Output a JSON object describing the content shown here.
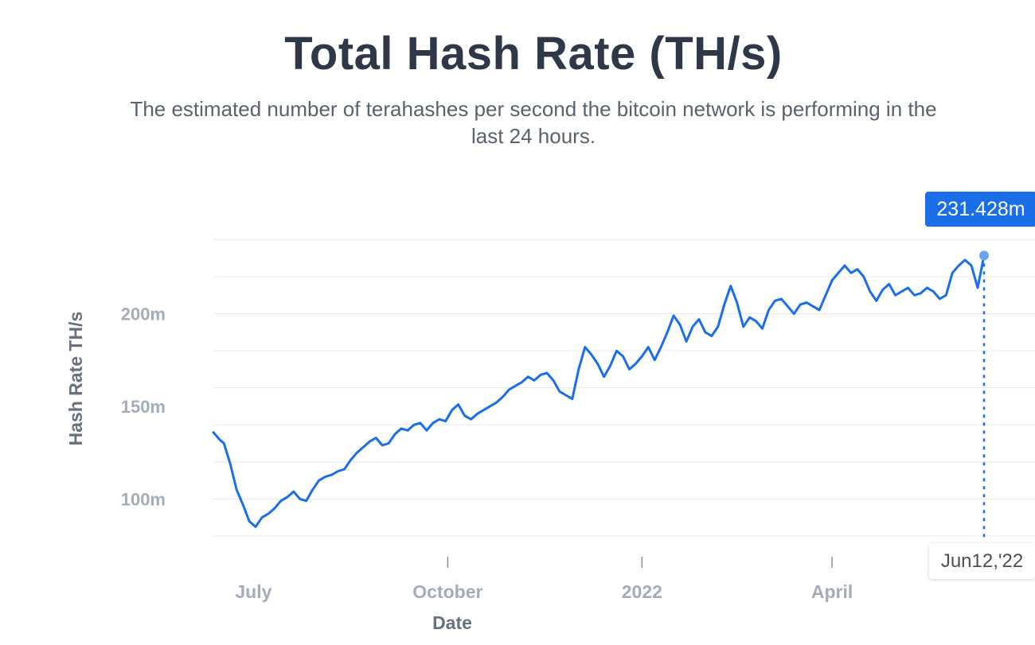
{
  "header": {
    "title": "Total Hash Rate (TH/s)",
    "subtitle": "The estimated number of terahashes per second the bitcoin network is performing in the last 24 hours."
  },
  "colors": {
    "line": "#1a6ee8",
    "grid": "#e6e8eb",
    "tick": "#a3acb9",
    "title": "#2f3848"
  },
  "tooltip": {
    "value": "231.428m",
    "date": "Jun12,'22"
  },
  "chart_data": {
    "type": "line",
    "title": "Total Hash Rate (TH/s)",
    "xlabel": "Date",
    "ylabel": "Hash Rate TH/s",
    "ylim": [
      80,
      250
    ],
    "y_ticks": [
      100,
      150,
      200
    ],
    "y_tick_labels": [
      "100m",
      "150m",
      "200m"
    ],
    "x_ticks": [
      "2021-07-01",
      "2021-10-01",
      "2022-01-01",
      "2022-04-01"
    ],
    "x_tick_labels": [
      "July",
      "October",
      "2022",
      "April"
    ],
    "grid": true,
    "legend": "none",
    "highlight": {
      "x": "2022-06-12",
      "y": 231.428
    },
    "series": [
      {
        "values": [
          [
            "2021-06-12",
            136
          ],
          [
            "2021-06-15",
            132
          ],
          [
            "2021-06-17",
            130
          ],
          [
            "2021-06-20",
            119
          ],
          [
            "2021-06-23",
            105
          ],
          [
            "2021-06-26",
            97
          ],
          [
            "2021-06-29",
            88
          ],
          [
            "2021-07-02",
            85
          ],
          [
            "2021-07-05",
            90
          ],
          [
            "2021-07-08",
            92
          ],
          [
            "2021-07-11",
            95
          ],
          [
            "2021-07-14",
            99
          ],
          [
            "2021-07-17",
            101
          ],
          [
            "2021-07-20",
            104
          ],
          [
            "2021-07-23",
            100
          ],
          [
            "2021-07-26",
            99
          ],
          [
            "2021-07-29",
            105
          ],
          [
            "2021-08-01",
            110
          ],
          [
            "2021-08-04",
            112
          ],
          [
            "2021-08-07",
            113
          ],
          [
            "2021-08-10",
            115
          ],
          [
            "2021-08-13",
            116
          ],
          [
            "2021-08-16",
            121
          ],
          [
            "2021-08-19",
            125
          ],
          [
            "2021-08-22",
            128
          ],
          [
            "2021-08-25",
            131
          ],
          [
            "2021-08-28",
            133
          ],
          [
            "2021-08-31",
            129
          ],
          [
            "2021-09-03",
            130
          ],
          [
            "2021-09-06",
            135
          ],
          [
            "2021-09-09",
            138
          ],
          [
            "2021-09-12",
            137
          ],
          [
            "2021-09-15",
            140
          ],
          [
            "2021-09-18",
            141
          ],
          [
            "2021-09-21",
            137
          ],
          [
            "2021-09-24",
            141
          ],
          [
            "2021-09-27",
            143
          ],
          [
            "2021-09-30",
            142
          ],
          [
            "2021-10-03",
            148
          ],
          [
            "2021-10-06",
            151
          ],
          [
            "2021-10-09",
            145
          ],
          [
            "2021-10-12",
            143
          ],
          [
            "2021-10-15",
            146
          ],
          [
            "2021-10-18",
            148
          ],
          [
            "2021-10-21",
            150
          ],
          [
            "2021-10-24",
            152
          ],
          [
            "2021-10-27",
            155
          ],
          [
            "2021-10-30",
            159
          ],
          [
            "2021-11-02",
            161
          ],
          [
            "2021-11-05",
            163
          ],
          [
            "2021-11-08",
            166
          ],
          [
            "2021-11-11",
            164
          ],
          [
            "2021-11-14",
            167
          ],
          [
            "2021-11-17",
            168
          ],
          [
            "2021-11-20",
            164
          ],
          [
            "2021-11-23",
            158
          ],
          [
            "2021-11-26",
            156
          ],
          [
            "2021-11-29",
            154
          ],
          [
            "2021-12-02",
            170
          ],
          [
            "2021-12-05",
            182
          ],
          [
            "2021-12-08",
            178
          ],
          [
            "2021-12-11",
            173
          ],
          [
            "2021-12-14",
            166
          ],
          [
            "2021-12-17",
            172
          ],
          [
            "2021-12-20",
            180
          ],
          [
            "2021-12-23",
            177
          ],
          [
            "2021-12-26",
            170
          ],
          [
            "2021-12-29",
            173
          ],
          [
            "2022-01-01",
            177
          ],
          [
            "2022-01-04",
            182
          ],
          [
            "2022-01-07",
            175
          ],
          [
            "2022-01-10",
            182
          ],
          [
            "2022-01-13",
            190
          ],
          [
            "2022-01-16",
            199
          ],
          [
            "2022-01-19",
            194
          ],
          [
            "2022-01-22",
            185
          ],
          [
            "2022-01-25",
            193
          ],
          [
            "2022-01-28",
            197
          ],
          [
            "2022-01-31",
            190
          ],
          [
            "2022-02-03",
            188
          ],
          [
            "2022-02-06",
            193
          ],
          [
            "2022-02-09",
            205
          ],
          [
            "2022-02-12",
            215
          ],
          [
            "2022-02-15",
            206
          ],
          [
            "2022-02-18",
            193
          ],
          [
            "2022-02-21",
            198
          ],
          [
            "2022-02-24",
            196
          ],
          [
            "2022-02-27",
            192
          ],
          [
            "2022-03-02",
            202
          ],
          [
            "2022-03-05",
            207
          ],
          [
            "2022-03-08",
            208
          ],
          [
            "2022-03-11",
            204
          ],
          [
            "2022-03-14",
            200
          ],
          [
            "2022-03-17",
            205
          ],
          [
            "2022-03-20",
            206
          ],
          [
            "2022-03-23",
            204
          ],
          [
            "2022-03-26",
            202
          ],
          [
            "2022-03-29",
            210
          ],
          [
            "2022-04-01",
            218
          ],
          [
            "2022-04-04",
            222
          ],
          [
            "2022-04-07",
            226
          ],
          [
            "2022-04-10",
            222
          ],
          [
            "2022-04-13",
            224
          ],
          [
            "2022-04-16",
            220
          ],
          [
            "2022-04-19",
            212
          ],
          [
            "2022-04-22",
            207
          ],
          [
            "2022-04-25",
            213
          ],
          [
            "2022-04-28",
            216
          ],
          [
            "2022-05-01",
            210
          ],
          [
            "2022-05-04",
            212
          ],
          [
            "2022-05-07",
            214
          ],
          [
            "2022-05-10",
            210
          ],
          [
            "2022-05-13",
            211
          ],
          [
            "2022-05-16",
            214
          ],
          [
            "2022-05-19",
            212
          ],
          [
            "2022-05-22",
            208
          ],
          [
            "2022-05-25",
            210
          ],
          [
            "2022-05-28",
            222
          ],
          [
            "2022-05-31",
            226
          ],
          [
            "2022-06-03",
            229
          ],
          [
            "2022-06-06",
            226
          ],
          [
            "2022-06-09",
            214
          ],
          [
            "2022-06-12",
            231.428
          ]
        ]
      }
    ]
  }
}
